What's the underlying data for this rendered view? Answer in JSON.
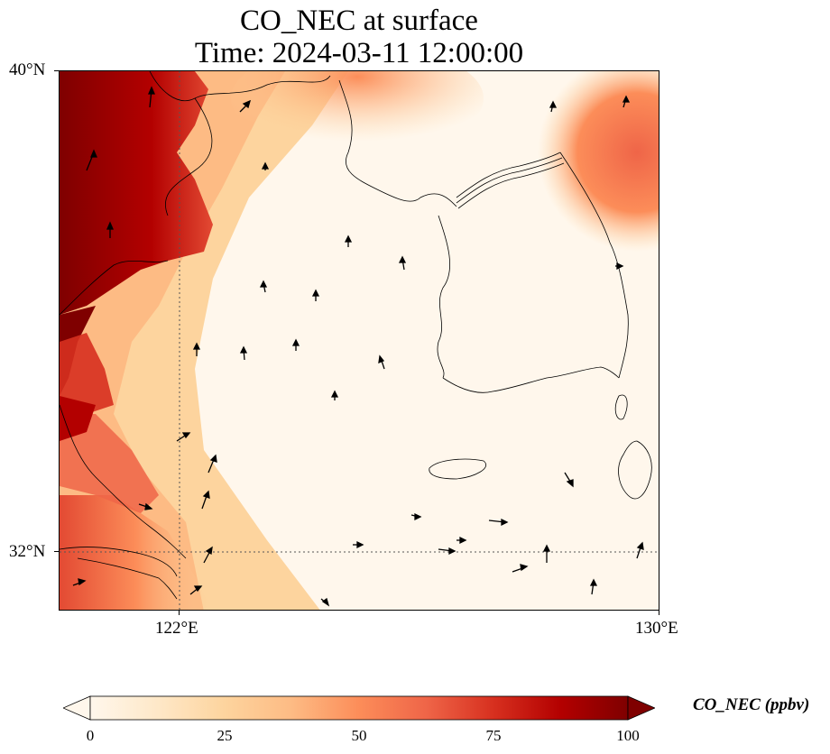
{
  "title": {
    "line1": "CO_NEC at surface",
    "line2": "Time: 2024-03-11 12:00:00"
  },
  "axes": {
    "lat_labels": [
      "40°N",
      "32°N"
    ],
    "lon_labels": [
      "122°E",
      "130°E"
    ],
    "lat_range": [
      31,
      40
    ],
    "lon_range": [
      120,
      130
    ]
  },
  "colorbar": {
    "label": "CO_NEC (ppbv)",
    "ticks": [
      "0",
      "25",
      "50",
      "75",
      "100"
    ],
    "range": [
      0,
      100
    ],
    "colormap": "OrRd",
    "extend": "both"
  },
  "map_features": {
    "coastlines": true,
    "gridlines": "dotted",
    "wind_vectors": true,
    "high_concentration_region": "west (China coast / Bohai)",
    "low_concentration_region": "Yellow Sea / Korean Peninsula"
  },
  "colors": {
    "low": "#fff7ec",
    "mid": "#fc8d59",
    "high": "#7f0000"
  }
}
